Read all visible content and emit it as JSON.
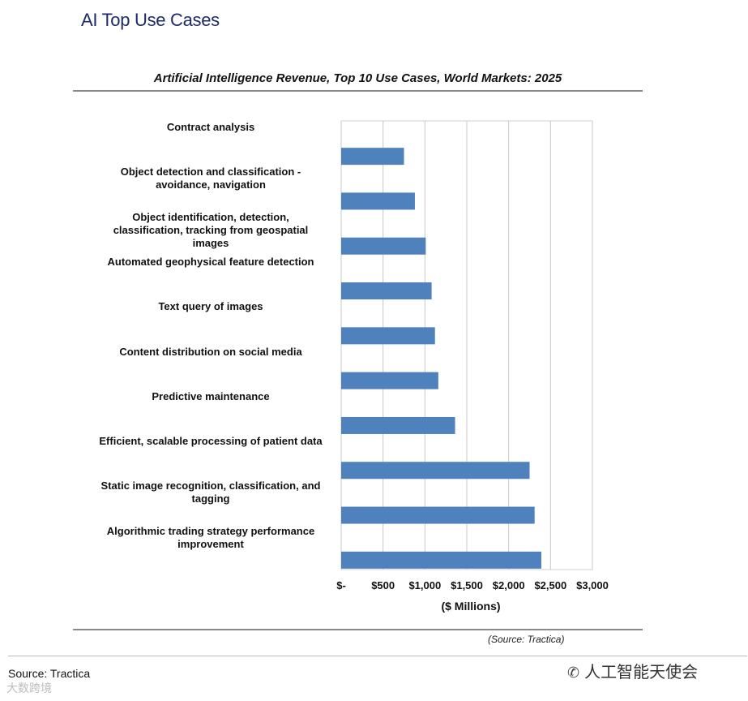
{
  "page": {
    "title": "AI Top Use Cases",
    "footer_source": "Source: Tractica",
    "watermark_left": "大数跨境",
    "watermark_right": "人工智能天使会",
    "watermark_icon": "wechat-icon"
  },
  "chart_data": {
    "type": "bar",
    "orientation": "horizontal",
    "title": "Artificial Intelligence Revenue, Top 10 Use Cases, World Markets: 2025",
    "xlabel": "($ Millions)",
    "ylabel": "",
    "source_note": "(Source: Tractica)",
    "categories": [
      [
        "Contract analysis"
      ],
      [
        "Object detection and classification -",
        "avoidance, navigation"
      ],
      [
        "Object identification, detection,",
        "classification, tracking from geospatial",
        "images"
      ],
      [
        "Automated geophysical feature detection"
      ],
      [
        "Text query of images"
      ],
      [
        "Content distribution on social media"
      ],
      [
        "Predictive maintenance"
      ],
      [
        "Efficient, scalable processing of patient data"
      ],
      [
        "Static image recognition, classification, and",
        "tagging"
      ],
      [
        "Algorithmic trading strategy performance",
        "improvement"
      ]
    ],
    "values": [
      750,
      880,
      1010,
      1080,
      1120,
      1160,
      1360,
      2250,
      2310,
      2390
    ],
    "xlim": [
      0,
      3000
    ],
    "xticks": [
      0,
      500,
      1000,
      1500,
      2000,
      2500,
      3000
    ],
    "xtick_labels": [
      "$-",
      "$500",
      "$1,000",
      "$1,500",
      "$2,000",
      "$2,500",
      "$3,000"
    ],
    "grid": true,
    "bar_color": "#4f81bd",
    "grid_color": "#c8c8c8"
  }
}
